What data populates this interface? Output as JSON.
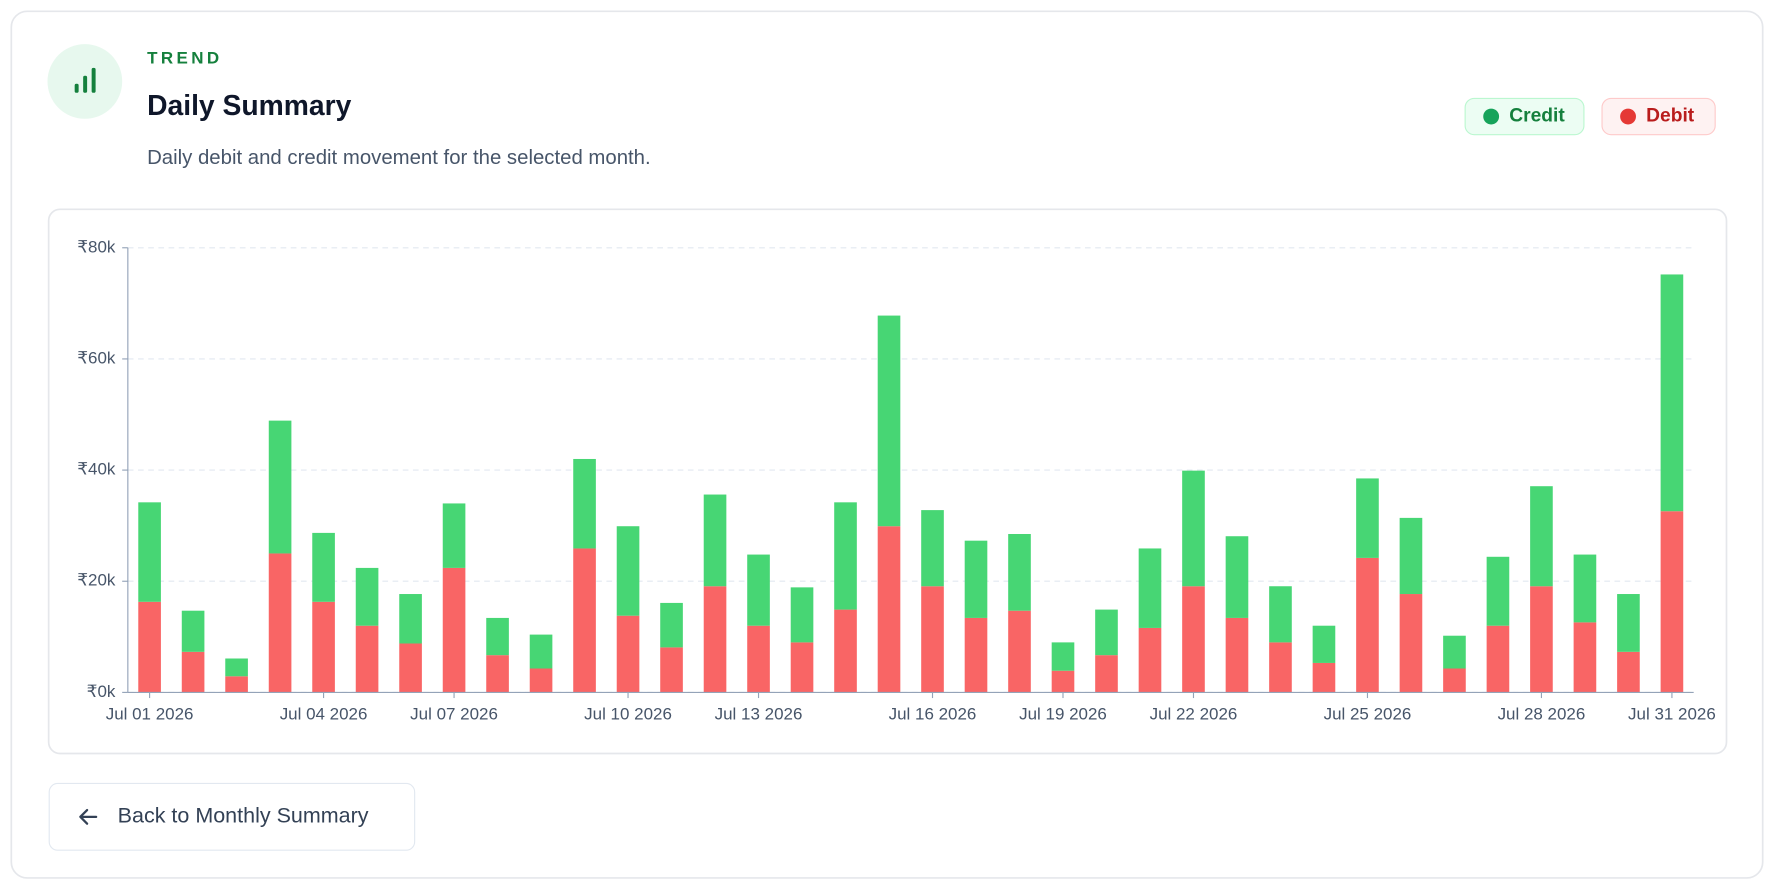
{
  "kicker": "TREND",
  "button": "Back to Monthly Summary",
  "chart_data": {
    "type": "stacked_bar",
    "title": "Daily Summary",
    "subtitle": "Daily debit and credit movement for the selected month.",
    "categories": [
      "Jul 01 2026",
      null,
      null,
      null,
      "Jul 04 2026",
      null,
      null,
      "Jul 07 2026",
      null,
      null,
      null,
      "Jul 10 2026",
      null,
      null,
      "Jul 13 2026",
      null,
      null,
      null,
      "Jul 16 2026",
      null,
      null,
      "Jul 19 2026",
      null,
      null,
      "Jul 22 2026",
      null,
      null,
      null,
      "Jul 25 2026",
      null,
      null,
      null,
      "Jul 28 2026",
      null,
      null,
      "Jul 31 2026"
    ],
    "series": [
      {
        "name": "Credit",
        "color": "#47d674",
        "values": [
          17900,
          7400,
          3200,
          23900,
          12400,
          10400,
          8900,
          11600,
          6700,
          6100,
          16100,
          16100,
          8000,
          16500,
          12800,
          9900,
          19300,
          37900,
          13700,
          13900,
          13800,
          5100,
          8200,
          14300,
          20800,
          14700,
          10100,
          6700,
          14300,
          13700,
          5900,
          12400,
          18000,
          12200,
          10400,
          42600
        ]
      },
      {
        "name": "Debit",
        "color": "#f96565",
        "values": [
          16300,
          7300,
          2900,
          25000,
          16300,
          12000,
          8800,
          22400,
          6700,
          4300,
          25900,
          13800,
          8100,
          19100,
          12000,
          9000,
          14900,
          29900,
          19100,
          13400,
          14700,
          3900,
          6700,
          11600,
          19100,
          13400,
          9000,
          5300,
          24200,
          17700,
          4300,
          12000,
          19100,
          12600,
          7300,
          32600
        ]
      }
    ],
    "ylim": [
      0,
      80000
    ],
    "yticks": [
      {
        "value": 0,
        "label": "₹0k"
      },
      {
        "value": 20000,
        "label": "₹20k"
      },
      {
        "value": 40000,
        "label": "₹40k"
      },
      {
        "value": 60000,
        "label": "₹60k"
      },
      {
        "value": 80000,
        "label": "₹80k"
      }
    ],
    "grid": true,
    "legend": "top-right"
  }
}
